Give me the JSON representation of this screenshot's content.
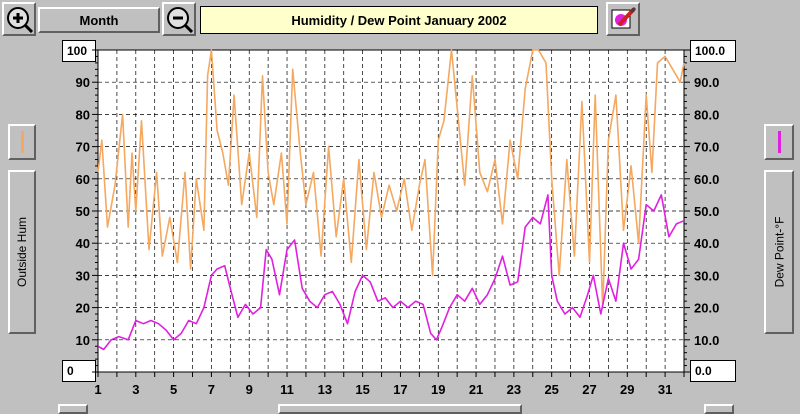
{
  "toolbar": {
    "period_label": "Month",
    "title": "Humidity  /  Dew Point  January 2002"
  },
  "left_panel": {
    "max_value": "100",
    "min_value": "0",
    "series_button_label": "Outside Hum",
    "swatch_color": "#f4a860"
  },
  "right_panel": {
    "max_value": "100.0",
    "min_value": "0.0",
    "series_button_label": "Dew Point-°F",
    "swatch_color": "#e020e0"
  },
  "chart_data": {
    "type": "line",
    "xlim": [
      1,
      32
    ],
    "ylim": [
      0,
      100
    ],
    "x_ticks": [
      "1",
      "3",
      "5",
      "7",
      "9",
      "11",
      "13",
      "15",
      "17",
      "19",
      "21",
      "23",
      "25",
      "27",
      "29",
      "31"
    ],
    "y_ticks_left": [
      "10",
      "20",
      "30",
      "40",
      "50",
      "60",
      "70",
      "80",
      "90"
    ],
    "y_ticks_right": [
      "10.0",
      "20.0",
      "30.0",
      "40.0",
      "50.0",
      "60.0",
      "70.0",
      "80.0",
      "90.0"
    ],
    "grid": true,
    "series": [
      {
        "color": "#f4a860",
        "x": [
          1.0,
          1.2,
          1.5,
          1.9,
          2.3,
          2.6,
          2.8,
          3.0,
          3.3,
          3.7,
          4.1,
          4.4,
          4.8,
          5.2,
          5.6,
          5.9,
          6.2,
          6.6,
          6.8,
          7.0,
          7.3,
          7.6,
          7.9,
          8.2,
          8.6,
          9.0,
          9.4,
          9.7,
          10.0,
          10.3,
          10.7,
          11.0,
          11.3,
          11.7,
          12.0,
          12.4,
          12.8,
          13.2,
          13.6,
          14.0,
          14.4,
          14.8,
          15.2,
          15.6,
          16.0,
          16.4,
          16.8,
          17.2,
          17.6,
          18.0,
          18.3,
          18.7,
          19.0,
          19.3,
          19.7,
          20.0,
          20.4,
          20.8,
          21.2,
          21.6,
          22.0,
          22.4,
          22.8,
          23.2,
          23.6,
          24.0,
          24.3,
          24.7,
          25.0,
          25.4,
          25.8,
          26.2,
          26.6,
          27.0,
          27.3,
          27.7,
          28.0,
          28.4,
          28.8,
          29.2,
          29.6,
          30.0,
          30.3,
          30.6,
          31.0,
          31.4,
          31.8,
          32.0
        ],
        "y": [
          62,
          72,
          45,
          58,
          80,
          45,
          68,
          50,
          78,
          38,
          62,
          36,
          48,
          34,
          62,
          32,
          60,
          44,
          92,
          100,
          75,
          68,
          58,
          86,
          52,
          68,
          48,
          92,
          62,
          52,
          68,
          46,
          94,
          68,
          52,
          62,
          36,
          70,
          42,
          60,
          34,
          66,
          38,
          62,
          48,
          58,
          50,
          60,
          44,
          58,
          66,
          30,
          72,
          78,
          100,
          82,
          58,
          92,
          62,
          56,
          66,
          46,
          72,
          60,
          88,
          100,
          100,
          96,
          60,
          30,
          66,
          36,
          84,
          34,
          86,
          20,
          72,
          86,
          44,
          64,
          40,
          86,
          62,
          96,
          98,
          94,
          90,
          96
        ]
      },
      {
        "color": "#e020e0",
        "x": [
          1.0,
          1.3,
          1.7,
          2.1,
          2.6,
          3.0,
          3.4,
          3.8,
          4.2,
          4.6,
          5.0,
          5.4,
          5.8,
          6.2,
          6.6,
          7.0,
          7.3,
          7.7,
          8.0,
          8.4,
          8.8,
          9.2,
          9.6,
          9.9,
          10.2,
          10.6,
          11.0,
          11.4,
          11.8,
          12.2,
          12.6,
          13.0,
          13.4,
          13.8,
          14.2,
          14.6,
          15.0,
          15.4,
          15.8,
          16.2,
          16.6,
          17.0,
          17.4,
          17.8,
          18.2,
          18.6,
          18.9,
          19.2,
          19.6,
          20.0,
          20.4,
          20.8,
          21.2,
          21.6,
          22.0,
          22.4,
          22.8,
          23.2,
          23.6,
          24.0,
          24.4,
          24.8,
          25.0,
          25.3,
          25.7,
          26.1,
          26.5,
          26.9,
          27.2,
          27.6,
          28.0,
          28.4,
          28.8,
          29.2,
          29.6,
          30.0,
          30.4,
          30.8,
          31.2,
          31.6,
          32.0
        ],
        "y": [
          8,
          7,
          10,
          11,
          10,
          16,
          15,
          16,
          15,
          13,
          10,
          12,
          16,
          15,
          20,
          30,
          32,
          33,
          26,
          17,
          21,
          18,
          20,
          38,
          35,
          24,
          38,
          41,
          26,
          22,
          20,
          24,
          25,
          21,
          15,
          25,
          30,
          28,
          22,
          23,
          20,
          22,
          20,
          22,
          21,
          12,
          10,
          14,
          20,
          24,
          22,
          26,
          21,
          24,
          29,
          36,
          27,
          28,
          45,
          48,
          46,
          55,
          30,
          22,
          18,
          20,
          17,
          24,
          30,
          18,
          29,
          22,
          40,
          32,
          35,
          52,
          50,
          55,
          42,
          46,
          47
        ]
      }
    ]
  }
}
